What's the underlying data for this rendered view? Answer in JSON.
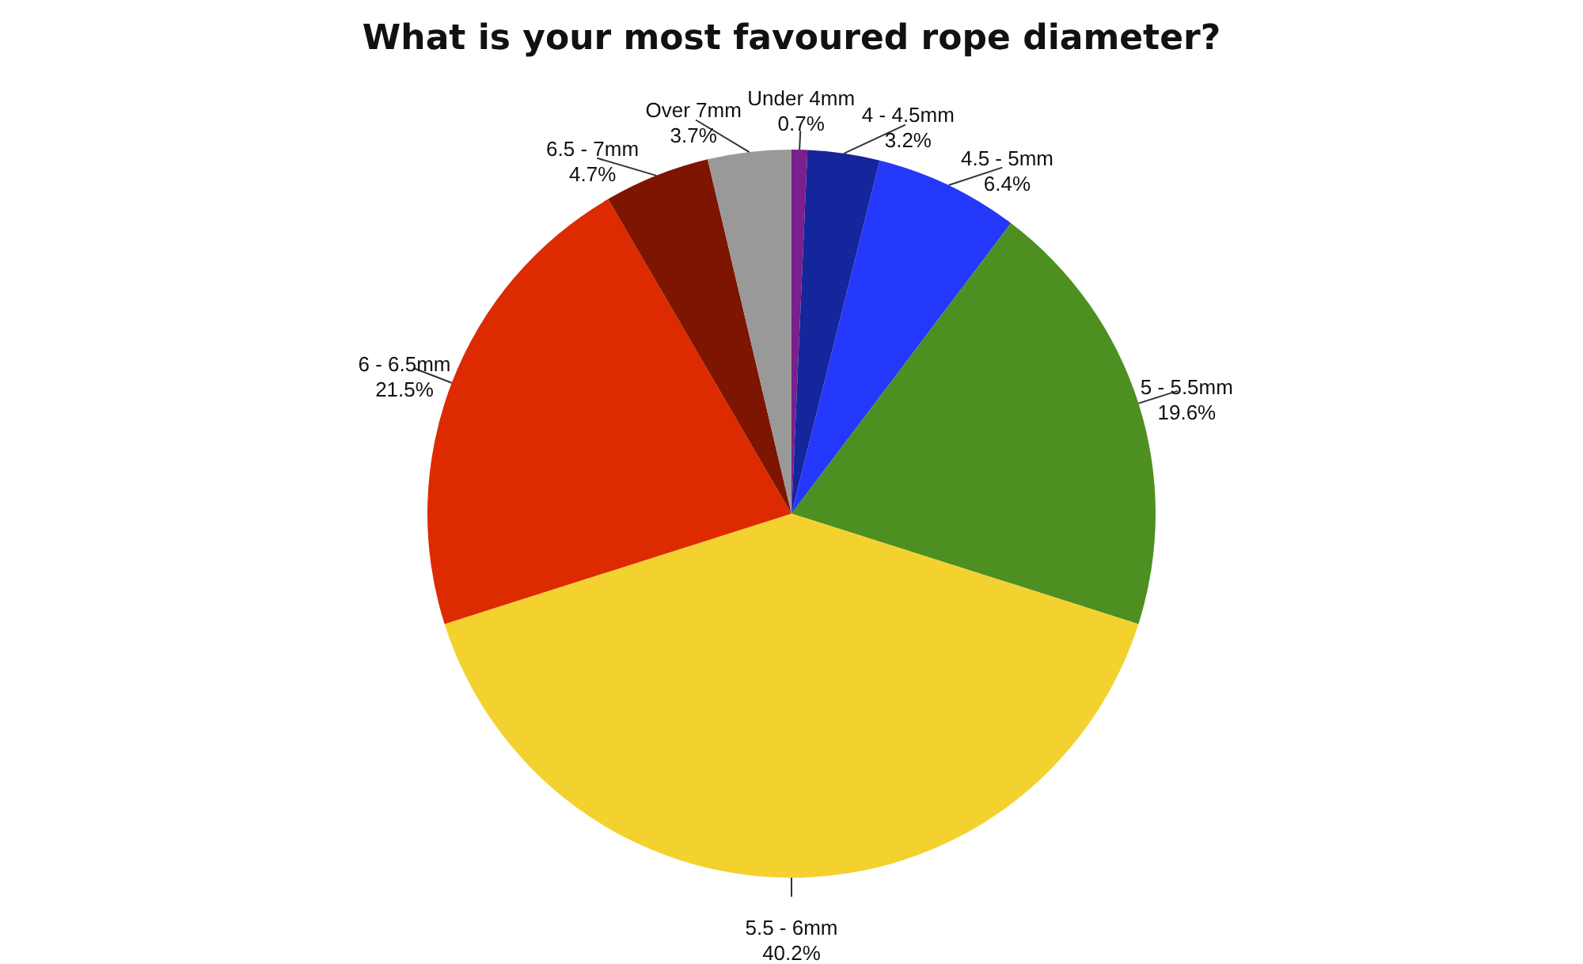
{
  "chart_data": {
    "type": "pie",
    "title": "What is your most favoured rope diameter?",
    "categories": [
      "Under 4mm",
      "4 - 4.5mm",
      "4.5 - 5mm",
      "5 - 5.5mm",
      "5.5 - 6mm",
      "6 - 6.5mm",
      "6.5 - 7mm",
      "Over 7mm"
    ],
    "values": [
      0.7,
      3.2,
      6.4,
      19.6,
      40.2,
      21.5,
      4.7,
      3.7
    ],
    "value_labels": [
      "0.7%",
      "3.2%",
      "6.4%",
      "19.6%",
      "40.2%",
      "21.5%",
      "4.7%",
      "3.7%"
    ],
    "colors": [
      "#7b1f8c",
      "#15259b",
      "#2438fb",
      "#4d8f21",
      "#f3d22f",
      "#dd2a00",
      "#7e1500",
      "#999999"
    ]
  }
}
